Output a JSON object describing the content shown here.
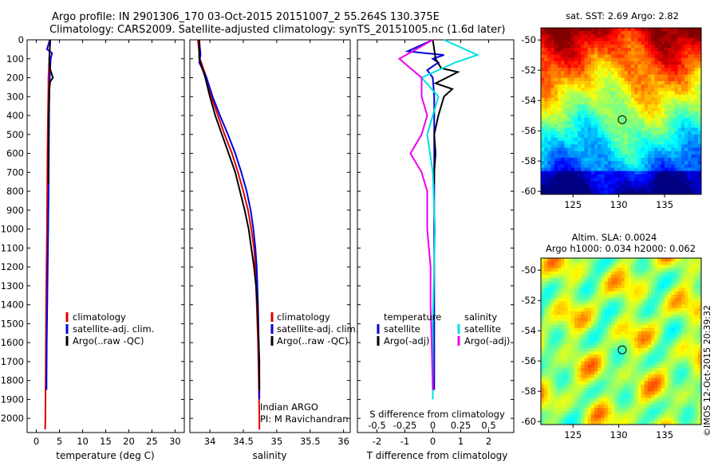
{
  "header": {
    "title_line1": "Argo profile: IN 2901306_170 03-Oct-2015 20151007_2 55.264S 130.375E",
    "title_line2": "Climatology: CARS2009. Satellite-adjusted climatology: synTS_20151005.nc (1.6d later)"
  },
  "colors": {
    "climatology": "#dd0000",
    "satellite": "#0000dd",
    "argo": "#000000",
    "salinity_satellite": "#00e0e0",
    "salinity_argo": "#ee00ee"
  },
  "chart_data": [
    {
      "type": "line",
      "name": "temperature-profile",
      "xlabel": "temperature (deg C)",
      "ylabel": "",
      "xlim": [
        -2,
        32
      ],
      "ylim": [
        2075,
        0
      ],
      "xticks": [
        0,
        5,
        10,
        15,
        20,
        25,
        30
      ],
      "yticks": [
        0,
        100,
        200,
        300,
        400,
        500,
        600,
        700,
        800,
        900,
        1000,
        1100,
        1200,
        1300,
        1400,
        1500,
        1600,
        1700,
        1800,
        1900,
        2000
      ],
      "legend": [
        "climatology",
        "satellite-adj. clim.",
        "Argo(..raw -QC)"
      ],
      "legend_position": "bottom-right",
      "series": [
        {
          "name": "climatology",
          "depth": [
            0,
            100,
            200,
            250,
            400,
            600,
            800,
            1000,
            1200,
            1400,
            1600,
            1800,
            2000,
            2060
          ],
          "values": [
            3.0,
            2.8,
            2.6,
            2.6,
            2.5,
            2.4,
            2.35,
            2.3,
            2.2,
            2.1,
            2.05,
            2.0,
            1.95,
            1.9
          ]
        },
        {
          "name": "satellite-adj. clim.",
          "depth": [
            0,
            50,
            70,
            100,
            200,
            300,
            400,
            600,
            800,
            1000,
            1200,
            1400,
            1600,
            1800,
            1850
          ],
          "values": [
            2.9,
            2.3,
            3.4,
            3.1,
            2.9,
            2.8,
            2.75,
            2.7,
            2.65,
            2.55,
            2.45,
            2.35,
            2.25,
            2.2,
            2.2
          ]
        },
        {
          "name": "Argo(..raw -QC)",
          "depth": [
            0,
            100,
            150,
            200,
            220,
            260,
            400,
            600,
            760
          ],
          "values": [
            3.0,
            2.8,
            2.9,
            3.6,
            3.0,
            2.8,
            2.7,
            2.6,
            2.6
          ]
        }
      ]
    },
    {
      "type": "line",
      "name": "salinity-profile",
      "xlabel": "salinity",
      "xlim": [
        33.7,
        36.1
      ],
      "ylim": [
        2075,
        0
      ],
      "xticks": [
        34,
        34.5,
        35,
        35.5,
        36
      ],
      "legend": [
        "climatology",
        "satellite-adj. clim.",
        "Argo(..raw -QC)"
      ],
      "legend_position": "bottom-right",
      "annotations": [
        "Indian ARGO",
        "PI: M Ravichandran"
      ],
      "series": [
        {
          "name": "climatology",
          "depth": [
            0,
            100,
            200,
            300,
            400,
            500,
            600,
            700,
            800,
            900,
            1000,
            1100,
            1200,
            1400,
            1600,
            1800,
            2000,
            2060
          ],
          "values": [
            33.82,
            33.85,
            33.95,
            34.02,
            34.12,
            34.22,
            34.33,
            34.42,
            34.5,
            34.57,
            34.62,
            34.66,
            34.68,
            34.7,
            34.72,
            34.73,
            34.74,
            34.74
          ]
        },
        {
          "name": "satellite-adj. clim.",
          "depth": [
            0,
            80,
            120,
            200,
            300,
            400,
            500,
            600,
            700,
            800,
            900,
            1000,
            1100,
            1200,
            1400,
            1600,
            1800,
            1900
          ],
          "values": [
            33.84,
            33.86,
            33.84,
            33.95,
            34.04,
            34.15,
            34.27,
            34.38,
            34.47,
            34.55,
            34.61,
            34.65,
            34.68,
            34.7,
            34.72,
            34.73,
            34.74,
            34.74
          ]
        },
        {
          "name": "Argo(..raw -QC)",
          "depth": [
            0,
            100,
            200,
            300,
            400,
            500,
            600,
            700,
            800,
            900,
            1000,
            1100,
            1200,
            1300,
            1400,
            1500,
            1600,
            1700,
            1800,
            1850
          ],
          "values": [
            33.84,
            33.84,
            33.93,
            34.0,
            34.08,
            34.18,
            34.28,
            34.38,
            34.45,
            34.52,
            34.58,
            34.62,
            34.66,
            34.69,
            34.71,
            34.72,
            34.73,
            34.74,
            34.74,
            34.74
          ]
        }
      ]
    },
    {
      "type": "line",
      "name": "difference-profile",
      "xlabel": "T difference from climatology",
      "xlabel_top": "S difference from climatology",
      "xlim": [
        -2.7,
        2.9
      ],
      "ylim": [
        2075,
        0
      ],
      "xticks": [
        -2,
        -1,
        0,
        1,
        2
      ],
      "xticks_top": [
        -0.5,
        -0.25,
        0,
        0.25,
        0.5
      ],
      "legend_headers": [
        "temperature",
        "salinity"
      ],
      "legend": [
        "satellite",
        "Argo(-adj)",
        "satellite",
        "Argo(-adj)"
      ],
      "legend_position": "bottom",
      "series": [
        {
          "name": "temperature satellite",
          "depth": [
            0,
            60,
            70,
            80,
            100,
            120,
            160,
            200,
            300,
            400,
            600,
            800,
            1000,
            1500,
            1850
          ],
          "values": [
            0.0,
            -0.9,
            -0.3,
            0.4,
            0.0,
            0.2,
            -0.2,
            0.0,
            0.05,
            0.05,
            0.05,
            0.05,
            0.05,
            0.05,
            0.05
          ]
        },
        {
          "name": "temperature Argo(-adj)",
          "depth": [
            0,
            100,
            150,
            170,
            200,
            230,
            260,
            300,
            400,
            500,
            600,
            700,
            760
          ],
          "values": [
            0.0,
            0.1,
            0.3,
            0.9,
            0.5,
            0.1,
            0.7,
            0.4,
            0.2,
            0.05,
            0.1,
            0.05,
            0.05
          ]
        },
        {
          "name": "salinity satellite",
          "depth": [
            0,
            80,
            120,
            200,
            300,
            400,
            500,
            700,
            1000,
            1500,
            1900
          ],
          "values": [
            0.1,
            0.4,
            0.2,
            -0.1,
            0.05,
            0.0,
            -0.05,
            0.0,
            0.02,
            0.0,
            0.0
          ]
        },
        {
          "name": "salinity Argo(-adj)",
          "depth": [
            0,
            100,
            200,
            300,
            400,
            500,
            600,
            700,
            800,
            1000,
            1200,
            1400,
            1600,
            1850
          ],
          "values": [
            0.0,
            -0.3,
            -0.1,
            -0.1,
            -0.05,
            -0.1,
            -0.2,
            -0.1,
            -0.05,
            -0.05,
            -0.02,
            -0.02,
            -0.01,
            0.0
          ]
        }
      ]
    },
    {
      "type": "heatmap",
      "name": "sst-map",
      "title": "sat. SST: 2.69 Argo: 2.82",
      "xticks": [
        125,
        130,
        135
      ],
      "yticks": [
        -50,
        -52,
        -54,
        -56,
        -58,
        -60
      ],
      "xlim": [
        121.5,
        139
      ],
      "ylim": [
        -60.2,
        -49.2
      ],
      "marker": {
        "lon": 130.375,
        "lat": -55.264
      },
      "palette": "jet"
    },
    {
      "type": "heatmap",
      "name": "sla-map",
      "title_line1": "Altim. SLA: 0.0024",
      "title_line2": "Argo h1000: 0.034 h2000: 0.062",
      "xticks": [
        125,
        130,
        135
      ],
      "yticks": [
        -50,
        -52,
        -54,
        -56,
        -58,
        -60
      ],
      "xlim": [
        121.5,
        139
      ],
      "ylim": [
        -60.2,
        -49.2
      ],
      "marker": {
        "lon": 130.375,
        "lat": -55.264
      },
      "palette": "jet"
    }
  ],
  "footer": {
    "credit": "©IMOS 12-Oct-2015 20:39:32"
  }
}
